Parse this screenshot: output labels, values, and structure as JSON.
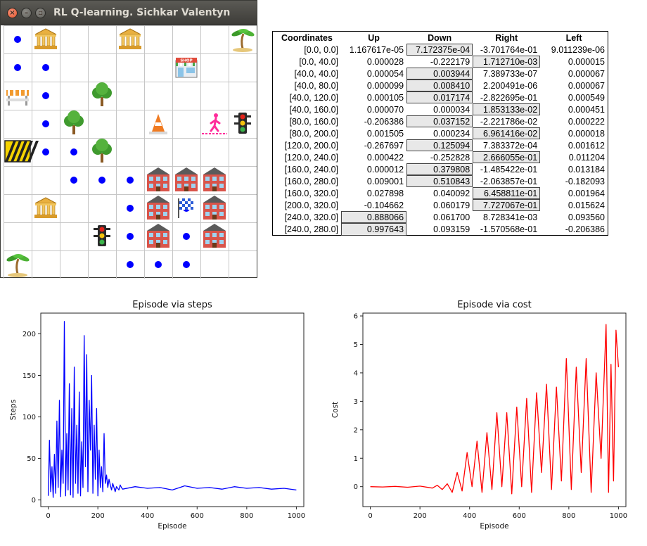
{
  "window": {
    "title": "RL Q-learning. Sichkar Valentyn",
    "close_glyph": "×",
    "minimize_glyph": "–",
    "maximize_glyph": "▫"
  },
  "grid": {
    "cols": 9,
    "rows": 9,
    "agent_color": "#0000ff",
    "path_dots": [
      [
        0,
        0
      ],
      [
        0,
        1
      ],
      [
        1,
        1
      ],
      [
        1,
        2
      ],
      [
        1,
        3
      ],
      [
        1,
        4
      ],
      [
        2,
        4
      ],
      [
        2,
        5
      ],
      [
        3,
        5
      ],
      [
        4,
        5
      ],
      [
        4,
        6
      ],
      [
        4,
        7
      ],
      [
        4,
        8
      ],
      [
        5,
        7
      ],
      [
        5,
        8
      ],
      [
        6,
        8
      ],
      [
        6,
        7
      ],
      [
        6,
        6
      ]
    ],
    "objects": [
      {
        "col": 1,
        "row": 0,
        "icon": "bank-icon"
      },
      {
        "col": 4,
        "row": 0,
        "icon": "bank-icon"
      },
      {
        "col": 8,
        "row": 0,
        "icon": "palm-tree-icon"
      },
      {
        "col": 6,
        "row": 1,
        "icon": "shop-icon",
        "label": "SHOP"
      },
      {
        "col": 0,
        "row": 2,
        "icon": "road-barrier-icon"
      },
      {
        "col": 3,
        "row": 2,
        "icon": "tree-icon"
      },
      {
        "col": 2,
        "row": 3,
        "icon": "tree-icon"
      },
      {
        "col": 5,
        "row": 3,
        "icon": "traffic-cone-icon"
      },
      {
        "col": 7,
        "row": 3,
        "icon": "pedestrian-icon"
      },
      {
        "col": 8,
        "row": 3,
        "icon": "traffic-light-icon"
      },
      {
        "col": 0,
        "row": 4,
        "icon": "hazard-barrier-icon"
      },
      {
        "col": 3,
        "row": 4,
        "icon": "tree-icon"
      },
      {
        "col": 5,
        "row": 5,
        "icon": "building-icon"
      },
      {
        "col": 6,
        "row": 5,
        "icon": "building-icon"
      },
      {
        "col": 7,
        "row": 5,
        "icon": "building-icon"
      },
      {
        "col": 1,
        "row": 6,
        "icon": "bank-icon"
      },
      {
        "col": 5,
        "row": 6,
        "icon": "building-icon"
      },
      {
        "col": 6,
        "row": 6,
        "icon": "finish-flag-icon"
      },
      {
        "col": 7,
        "row": 6,
        "icon": "building-icon"
      },
      {
        "col": 3,
        "row": 7,
        "icon": "traffic-light-icon"
      },
      {
        "col": 5,
        "row": 7,
        "icon": "building-icon"
      },
      {
        "col": 7,
        "row": 7,
        "icon": "building-icon"
      },
      {
        "col": 0,
        "row": 8,
        "icon": "palm-tree-icon"
      }
    ]
  },
  "q_table": {
    "headers": [
      "Coordinates",
      "Up",
      "Down",
      "Right",
      "Left"
    ],
    "rows": [
      {
        "cells": [
          "[0.0, 0.0]",
          "1.167617e-05",
          "7.172375e-04",
          "-3.701764e-01",
          "9.011239e-06"
        ],
        "best": 2
      },
      {
        "cells": [
          "[0.0, 40.0]",
          "0.000028",
          "-0.222179",
          "1.712710e-03",
          "0.000015"
        ],
        "best": 3
      },
      {
        "cells": [
          "[40.0, 40.0]",
          "0.000054",
          "0.003944",
          "7.389733e-07",
          "0.000067"
        ],
        "best": 2
      },
      {
        "cells": [
          "[40.0, 80.0]",
          "0.000099",
          "0.008410",
          "2.200491e-06",
          "0.000067"
        ],
        "best": 2
      },
      {
        "cells": [
          "[40.0, 120.0]",
          "0.000105",
          "0.017174",
          "-2.822695e-01",
          "0.000549"
        ],
        "best": 2
      },
      {
        "cells": [
          "[40.0, 160.0]",
          "0.000070",
          "0.000034",
          "1.853133e-02",
          "0.000451"
        ],
        "best": 3
      },
      {
        "cells": [
          "[80.0, 160.0]",
          "-0.206386",
          "0.037152",
          "-2.221786e-02",
          "0.000222"
        ],
        "best": 2
      },
      {
        "cells": [
          "[80.0, 200.0]",
          "0.001505",
          "0.000234",
          "6.961416e-02",
          "0.000018"
        ],
        "best": 3
      },
      {
        "cells": [
          "[120.0, 200.0]",
          "-0.267697",
          "0.125094",
          "7.383372e-04",
          "0.001612"
        ],
        "best": 2
      },
      {
        "cells": [
          "[120.0, 240.0]",
          "0.000422",
          "-0.252828",
          "2.666055e-01",
          "0.011204"
        ],
        "best": 3
      },
      {
        "cells": [
          "[160.0, 240.0]",
          "0.000012",
          "0.379808",
          "-1.485422e-01",
          "0.013184"
        ],
        "best": 2
      },
      {
        "cells": [
          "[160.0, 280.0]",
          "0.009001",
          "0.510843",
          "-2.063857e-01",
          "-0.182093"
        ],
        "best": 2
      },
      {
        "cells": [
          "[160.0, 320.0]",
          "0.027898",
          "0.040092",
          "6.458811e-01",
          "0.001964"
        ],
        "best": 3
      },
      {
        "cells": [
          "[200.0, 320.0]",
          "-0.104662",
          "0.060179",
          "7.727067e-01",
          "0.015624"
        ],
        "best": 3
      },
      {
        "cells": [
          "[240.0, 320.0]",
          "0.888066",
          "0.061700",
          "8.728341e-03",
          "0.093560"
        ],
        "best": 1
      },
      {
        "cells": [
          "[240.0, 280.0]",
          "0.997643",
          "0.093159",
          "-1.570568e-01",
          "-0.206386"
        ],
        "best": 1
      }
    ]
  },
  "chart_data": [
    {
      "type": "line",
      "title": "Episode via steps",
      "xlabel": "Episode",
      "ylabel": "Steps",
      "xlim": [
        -30,
        1030
      ],
      "ylim": [
        -8,
        225
      ],
      "xticks": [
        0,
        200,
        400,
        600,
        800,
        1000
      ],
      "yticks": [
        0,
        50,
        100,
        150,
        200
      ],
      "color": "#0000ff",
      "series": [
        {
          "x": [
            0,
            5,
            10,
            15,
            20,
            25,
            30,
            35,
            40,
            45,
            50,
            55,
            60,
            65,
            70,
            75,
            80,
            85,
            90,
            95,
            100,
            105,
            110,
            115,
            120,
            125,
            130,
            135,
            140,
            145,
            150,
            155,
            160,
            165,
            170,
            175,
            180,
            185,
            190,
            195,
            200,
            205,
            210,
            215,
            220,
            225,
            230,
            235,
            240,
            245,
            250,
            255,
            260,
            265,
            270,
            275,
            280,
            285,
            290,
            295,
            300,
            350,
            400,
            450,
            500,
            550,
            600,
            650,
            700,
            750,
            800,
            850,
            900,
            950,
            1000
          ],
          "y": [
            5,
            72,
            10,
            40,
            3,
            55,
            8,
            95,
            15,
            120,
            4,
            60,
            20,
            215,
            5,
            80,
            12,
            140,
            6,
            110,
            3,
            160,
            20,
            90,
            8,
            130,
            5,
            70,
            15,
            198,
            40,
            175,
            10,
            120,
            60,
            150,
            8,
            90,
            25,
            110,
            5,
            60,
            15,
            40,
            10,
            80,
            20,
            30,
            15,
            25,
            18,
            12,
            20,
            15,
            10,
            16,
            14,
            12,
            18,
            15,
            13,
            16,
            14,
            15,
            12,
            17,
            14,
            15,
            13,
            16,
            14,
            15,
            13,
            14,
            12
          ]
        }
      ]
    },
    {
      "type": "line",
      "title": "Episode via cost",
      "xlabel": "Episode",
      "ylabel": "Cost",
      "xlim": [
        -30,
        1030
      ],
      "ylim": [
        -0.7,
        6.1
      ],
      "xticks": [
        0,
        200,
        400,
        600,
        800,
        1000
      ],
      "yticks": [
        0,
        1,
        2,
        3,
        4,
        5,
        6
      ],
      "color": "#ff0000",
      "series": [
        {
          "x": [
            0,
            50,
            100,
            150,
            200,
            250,
            270,
            290,
            310,
            330,
            350,
            370,
            390,
            410,
            430,
            450,
            470,
            490,
            510,
            530,
            550,
            570,
            590,
            610,
            630,
            650,
            670,
            690,
            710,
            730,
            750,
            770,
            790,
            810,
            830,
            850,
            870,
            890,
            910,
            930,
            950,
            960,
            970,
            980,
            990,
            1000
          ],
          "y": [
            0,
            -0.01,
            0.01,
            -0.02,
            0.02,
            -0.05,
            0.05,
            -0.1,
            0.1,
            -0.2,
            0.5,
            -0.15,
            1.2,
            0,
            1.6,
            -0.2,
            1.9,
            -0.1,
            2.6,
            0,
            2.6,
            -0.25,
            2.8,
            0,
            3.1,
            -0.2,
            3.3,
            0.5,
            3.6,
            -0.1,
            3.5,
            0.2,
            4.5,
            -0.1,
            4.2,
            0.5,
            4.5,
            -0.2,
            4.0,
            1.0,
            5.7,
            -0.2,
            4.3,
            0.2,
            5.5,
            4.2
          ]
        }
      ]
    }
  ]
}
